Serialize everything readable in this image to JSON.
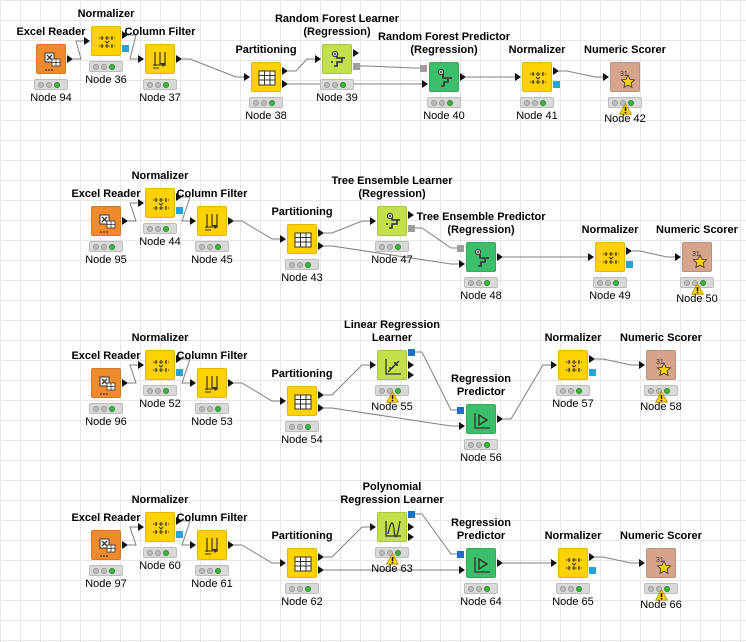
{
  "colors": {
    "reader": "#f08a2c",
    "manipulator": "#ffd200",
    "learner": "#c1e04a",
    "predictor": "#3cbf6a",
    "scorer": "#d5a48a",
    "model_port": "#9e9e9e",
    "normalizer_port": "#24a3d8",
    "linear_model_port": "#1f6fbf",
    "wire": "#7f7f7f",
    "led_on": "#3cb63c",
    "warning": "#ffd200"
  },
  "workflows": [
    {
      "name": "row1",
      "nodes": [
        {
          "key": "r1_excel",
          "title": "Excel Reader",
          "label": "Node 94",
          "icon": "excel-reader-icon",
          "kind": "reader",
          "warning": false
        },
        {
          "key": "r1_norm1",
          "title": "Normalizer",
          "label": "Node 36",
          "icon": "normalizer-icon",
          "kind": "manipulator",
          "warning": false
        },
        {
          "key": "r1_colf",
          "title": "Column Filter",
          "label": "Node 37",
          "icon": "column-filter-icon",
          "kind": "manipulator",
          "warning": false
        },
        {
          "key": "r1_part",
          "title": "Partitioning",
          "label": "Node 38",
          "icon": "partitioning-icon",
          "kind": "manipulator",
          "warning": false
        },
        {
          "key": "r1_learn",
          "title": "Random Forest Learner\n(Regression)",
          "label": "Node 39",
          "icon": "forest-learner-icon",
          "kind": "learner",
          "warning": false
        },
        {
          "key": "r1_pred",
          "title": "Random Forest Predictor\n(Regression)",
          "label": "Node 40",
          "icon": "forest-predictor-icon",
          "kind": "predictor",
          "warning": false
        },
        {
          "key": "r1_norm2",
          "title": "Normalizer",
          "label": "Node 41",
          "icon": "normalizer-icon",
          "kind": "manipulator",
          "warning": false
        },
        {
          "key": "r1_score",
          "title": "Numeric Scorer",
          "label": "Node 42",
          "icon": "scorer-icon",
          "kind": "scorer",
          "warning": true
        }
      ]
    },
    {
      "name": "row2",
      "nodes": [
        {
          "key": "r2_excel",
          "title": "Excel Reader",
          "label": "Node 95",
          "icon": "excel-reader-icon",
          "kind": "reader",
          "warning": false
        },
        {
          "key": "r2_norm1",
          "title": "Normalizer",
          "label": "Node 44",
          "icon": "normalizer-icon",
          "kind": "manipulator",
          "warning": false
        },
        {
          "key": "r2_colf",
          "title": "Column Filter",
          "label": "Node 45",
          "icon": "column-filter-icon",
          "kind": "manipulator",
          "warning": false
        },
        {
          "key": "r2_part",
          "title": "Partitioning",
          "label": "Node 43",
          "icon": "partitioning-icon",
          "kind": "manipulator",
          "warning": false
        },
        {
          "key": "r2_learn",
          "title": "Tree Ensemble Learner\n(Regression)",
          "label": "Node 47",
          "icon": "forest-learner-icon",
          "kind": "learner",
          "warning": false
        },
        {
          "key": "r2_pred",
          "title": "Tree Ensemble Predictor\n(Regression)",
          "label": "Node 48",
          "icon": "forest-predictor-icon",
          "kind": "predictor",
          "warning": false
        },
        {
          "key": "r2_norm2",
          "title": "Normalizer",
          "label": "Node 49",
          "icon": "normalizer-icon",
          "kind": "manipulator",
          "warning": false
        },
        {
          "key": "r2_score",
          "title": "Numeric Scorer",
          "label": "Node 50",
          "icon": "scorer-icon",
          "kind": "scorer",
          "warning": true
        }
      ]
    },
    {
      "name": "row3",
      "nodes": [
        {
          "key": "r3_excel",
          "title": "Excel Reader",
          "label": "Node 96",
          "icon": "excel-reader-icon",
          "kind": "reader",
          "warning": false
        },
        {
          "key": "r3_norm1",
          "title": "Normalizer",
          "label": "Node 52",
          "icon": "normalizer-icon",
          "kind": "manipulator",
          "warning": false
        },
        {
          "key": "r3_colf",
          "title": "Column Filter",
          "label": "Node 53",
          "icon": "column-filter-icon",
          "kind": "manipulator",
          "warning": false
        },
        {
          "key": "r3_part",
          "title": "Partitioning",
          "label": "Node 54",
          "icon": "partitioning-icon",
          "kind": "manipulator",
          "warning": false
        },
        {
          "key": "r3_learn",
          "title": "Linear Regression\nLearner",
          "label": "Node 55",
          "icon": "linear-learner-icon",
          "kind": "learner",
          "warning": true
        },
        {
          "key": "r3_pred",
          "title": "Regression\nPredictor",
          "label": "Node 56",
          "icon": "regression-predictor-icon",
          "kind": "predictor",
          "warning": false
        },
        {
          "key": "r3_norm2",
          "title": "Normalizer",
          "label": "Node 57",
          "icon": "normalizer-icon",
          "kind": "manipulator",
          "warning": false
        },
        {
          "key": "r3_score",
          "title": "Numeric Scorer",
          "label": "Node 58",
          "icon": "scorer-icon",
          "kind": "scorer",
          "warning": true
        }
      ]
    },
    {
      "name": "row4",
      "nodes": [
        {
          "key": "r4_excel",
          "title": "Excel Reader",
          "label": "Node 97",
          "icon": "excel-reader-icon",
          "kind": "reader",
          "warning": false
        },
        {
          "key": "r4_norm1",
          "title": "Normalizer",
          "label": "Node 60",
          "icon": "normalizer-icon",
          "kind": "manipulator",
          "warning": false
        },
        {
          "key": "r4_colf",
          "title": "Column Filter",
          "label": "Node 61",
          "icon": "column-filter-icon",
          "kind": "manipulator",
          "warning": false
        },
        {
          "key": "r4_part",
          "title": "Partitioning",
          "label": "Node 62",
          "icon": "partitioning-icon",
          "kind": "manipulator",
          "warning": false
        },
        {
          "key": "r4_learn",
          "title": "Polynomial\nRegression Learner",
          "label": "Node 63",
          "icon": "polynomial-learner-icon",
          "kind": "learner",
          "warning": true
        },
        {
          "key": "r4_pred",
          "title": "Regression\nPredictor",
          "label": "Node 64",
          "icon": "regression-predictor-icon",
          "kind": "predictor",
          "warning": false
        },
        {
          "key": "r4_norm2",
          "title": "Normalizer",
          "label": "Node 65",
          "icon": "normalizer-icon",
          "kind": "manipulator",
          "warning": false
        },
        {
          "key": "r4_score",
          "title": "Numeric Scorer",
          "label": "Node 66",
          "icon": "scorer-icon",
          "kind": "scorer",
          "warning": true
        }
      ]
    }
  ]
}
